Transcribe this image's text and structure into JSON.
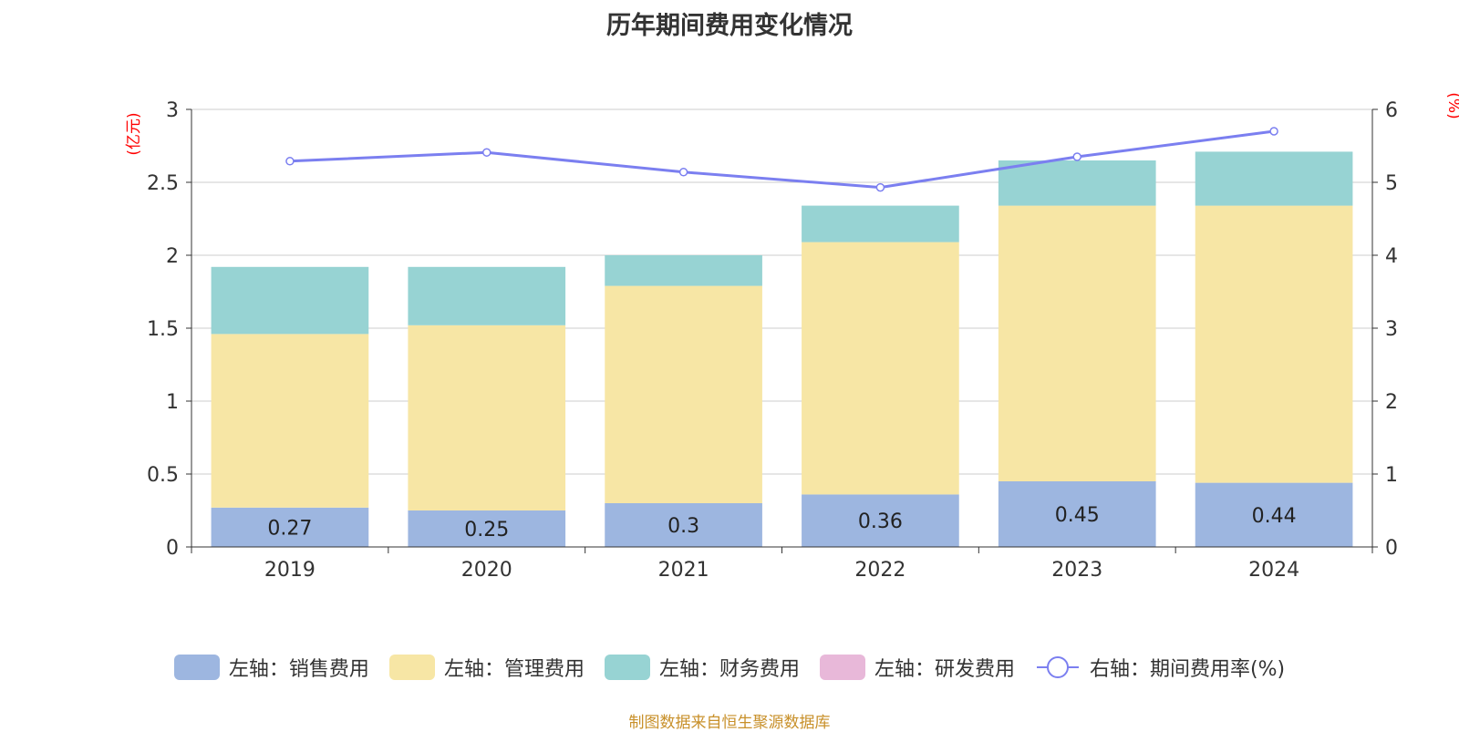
{
  "chart_data": {
    "type": "bar",
    "stacked": true,
    "title": "历年期间费用变化情况",
    "categories": [
      "2019",
      "2020",
      "2021",
      "2022",
      "2023",
      "2024"
    ],
    "left_axis": {
      "label": "(亿元)",
      "ylim": [
        0,
        3
      ],
      "ticks": [
        "0",
        "0.5",
        "1",
        "1.5",
        "2",
        "2.5",
        "3"
      ]
    },
    "right_axis": {
      "label": "(%)",
      "ylim": [
        0,
        6
      ],
      "ticks": [
        "0",
        "1",
        "2",
        "3",
        "4",
        "5",
        "6"
      ]
    },
    "series": [
      {
        "name": "左轴：销售费用",
        "type": "bar",
        "color": "#9db6e0",
        "values": [
          0.27,
          0.25,
          0.3,
          0.36,
          0.45,
          0.44
        ],
        "labels": [
          "0.27",
          "0.25",
          "0.3",
          "0.36",
          "0.45",
          "0.44"
        ]
      },
      {
        "name": "左轴：管理费用",
        "type": "bar",
        "color": "#f7e6a5",
        "values": [
          1.19,
          1.27,
          1.49,
          1.73,
          1.89,
          1.9
        ]
      },
      {
        "name": "左轴：财务费用",
        "type": "bar",
        "color": "#97d3d3",
        "values": [
          0.46,
          0.4,
          0.21,
          0.25,
          0.31,
          0.37
        ]
      },
      {
        "name": "左轴：研发费用",
        "type": "bar",
        "color": "#e8b8d9",
        "values": [
          0,
          0,
          0,
          0,
          0,
          0
        ]
      },
      {
        "name": "右轴：期间费用率(%)",
        "type": "line",
        "axis": "right",
        "color": "#7b7ff0",
        "values": [
          5.29,
          5.41,
          5.14,
          4.93,
          5.35,
          5.7
        ]
      }
    ],
    "grid": true,
    "legend_position": "bottom"
  },
  "source_note": "制图数据来自恒生聚源数据库"
}
